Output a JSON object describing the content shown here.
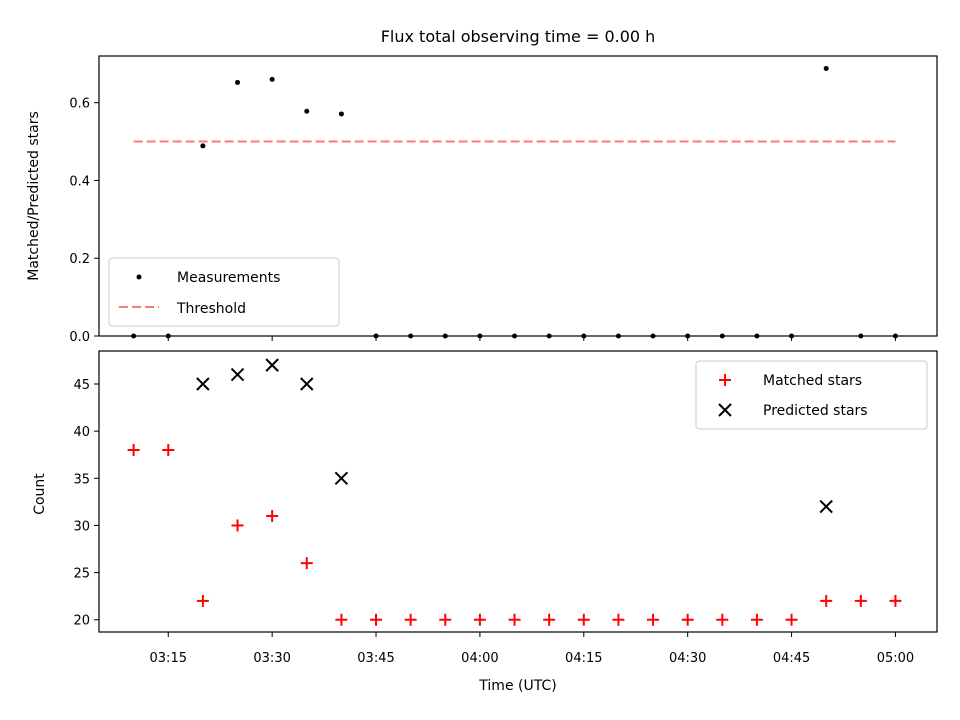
{
  "chart_data": [
    {
      "type": "scatter",
      "title": "Flux total observing time = 0.00 h",
      "xlabel": "",
      "ylabel": "Matched/Predicted stars",
      "xlim": [
        "03:05",
        "05:06"
      ],
      "ylim": [
        0,
        0.72
      ],
      "yticks": [
        "0.0",
        "0.2",
        "0.4",
        "0.6"
      ],
      "legend": "lower-left",
      "series": [
        {
          "name": "Measurements",
          "marker": "dot",
          "color": "#000000",
          "points": [
            {
              "x": "03:10",
              "y": 0.0
            },
            {
              "x": "03:15",
              "y": 0.0
            },
            {
              "x": "03:20",
              "y": 0.489
            },
            {
              "x": "03:25",
              "y": 0.652
            },
            {
              "x": "03:30",
              "y": 0.66
            },
            {
              "x": "03:35",
              "y": 0.578
            },
            {
              "x": "03:40",
              "y": 0.571
            },
            {
              "x": "03:45",
              "y": 0.0
            },
            {
              "x": "03:50",
              "y": 0.0
            },
            {
              "x": "03:55",
              "y": 0.0
            },
            {
              "x": "04:00",
              "y": 0.0
            },
            {
              "x": "04:05",
              "y": 0.0
            },
            {
              "x": "04:10",
              "y": 0.0
            },
            {
              "x": "04:15",
              "y": 0.0
            },
            {
              "x": "04:20",
              "y": 0.0
            },
            {
              "x": "04:25",
              "y": 0.0
            },
            {
              "x": "04:30",
              "y": 0.0
            },
            {
              "x": "04:35",
              "y": 0.0
            },
            {
              "x": "04:40",
              "y": 0.0
            },
            {
              "x": "04:45",
              "y": 0.0
            },
            {
              "x": "04:50",
              "y": 0.688
            },
            {
              "x": "04:55",
              "y": 0.0
            },
            {
              "x": "05:00",
              "y": 0.0
            }
          ]
        },
        {
          "name": "Threshold",
          "marker": "dashed-line",
          "color": "#ff7777",
          "points": [
            {
              "x": "03:10",
              "y": 0.5
            },
            {
              "x": "05:00",
              "y": 0.5
            }
          ]
        }
      ]
    },
    {
      "type": "scatter",
      "title": "",
      "xlabel": "Time (UTC)",
      "ylabel": "Count",
      "xlim": [
        "03:05",
        "05:06"
      ],
      "ylim": [
        18.7,
        48.5
      ],
      "yticks": [
        "20",
        "25",
        "30",
        "35",
        "40",
        "45"
      ],
      "xticks": [
        "03:15",
        "03:30",
        "03:45",
        "04:00",
        "04:15",
        "04:30",
        "04:45",
        "05:00"
      ],
      "legend": "top-right",
      "series": [
        {
          "name": "Matched stars",
          "marker": "plus",
          "color": "#ff0000",
          "points": [
            {
              "x": "03:10",
              "y": 38
            },
            {
              "x": "03:15",
              "y": 38
            },
            {
              "x": "03:20",
              "y": 22
            },
            {
              "x": "03:25",
              "y": 30
            },
            {
              "x": "03:30",
              "y": 31
            },
            {
              "x": "03:35",
              "y": 26
            },
            {
              "x": "03:40",
              "y": 20
            },
            {
              "x": "03:45",
              "y": 20
            },
            {
              "x": "03:50",
              "y": 20
            },
            {
              "x": "03:55",
              "y": 20
            },
            {
              "x": "04:00",
              "y": 20
            },
            {
              "x": "04:05",
              "y": 20
            },
            {
              "x": "04:10",
              "y": 20
            },
            {
              "x": "04:15",
              "y": 20
            },
            {
              "x": "04:20",
              "y": 20
            },
            {
              "x": "04:25",
              "y": 20
            },
            {
              "x": "04:30",
              "y": 20
            },
            {
              "x": "04:35",
              "y": 20
            },
            {
              "x": "04:40",
              "y": 20
            },
            {
              "x": "04:45",
              "y": 20
            },
            {
              "x": "04:50",
              "y": 22
            },
            {
              "x": "04:55",
              "y": 22
            },
            {
              "x": "05:00",
              "y": 22
            }
          ]
        },
        {
          "name": "Predicted stars",
          "marker": "x",
          "color": "#000000",
          "points": [
            {
              "x": "03:20",
              "y": 45
            },
            {
              "x": "03:25",
              "y": 46
            },
            {
              "x": "03:30",
              "y": 47
            },
            {
              "x": "03:35",
              "y": 45
            },
            {
              "x": "03:40",
              "y": 35
            },
            {
              "x": "04:50",
              "y": 32
            }
          ]
        }
      ]
    }
  ]
}
